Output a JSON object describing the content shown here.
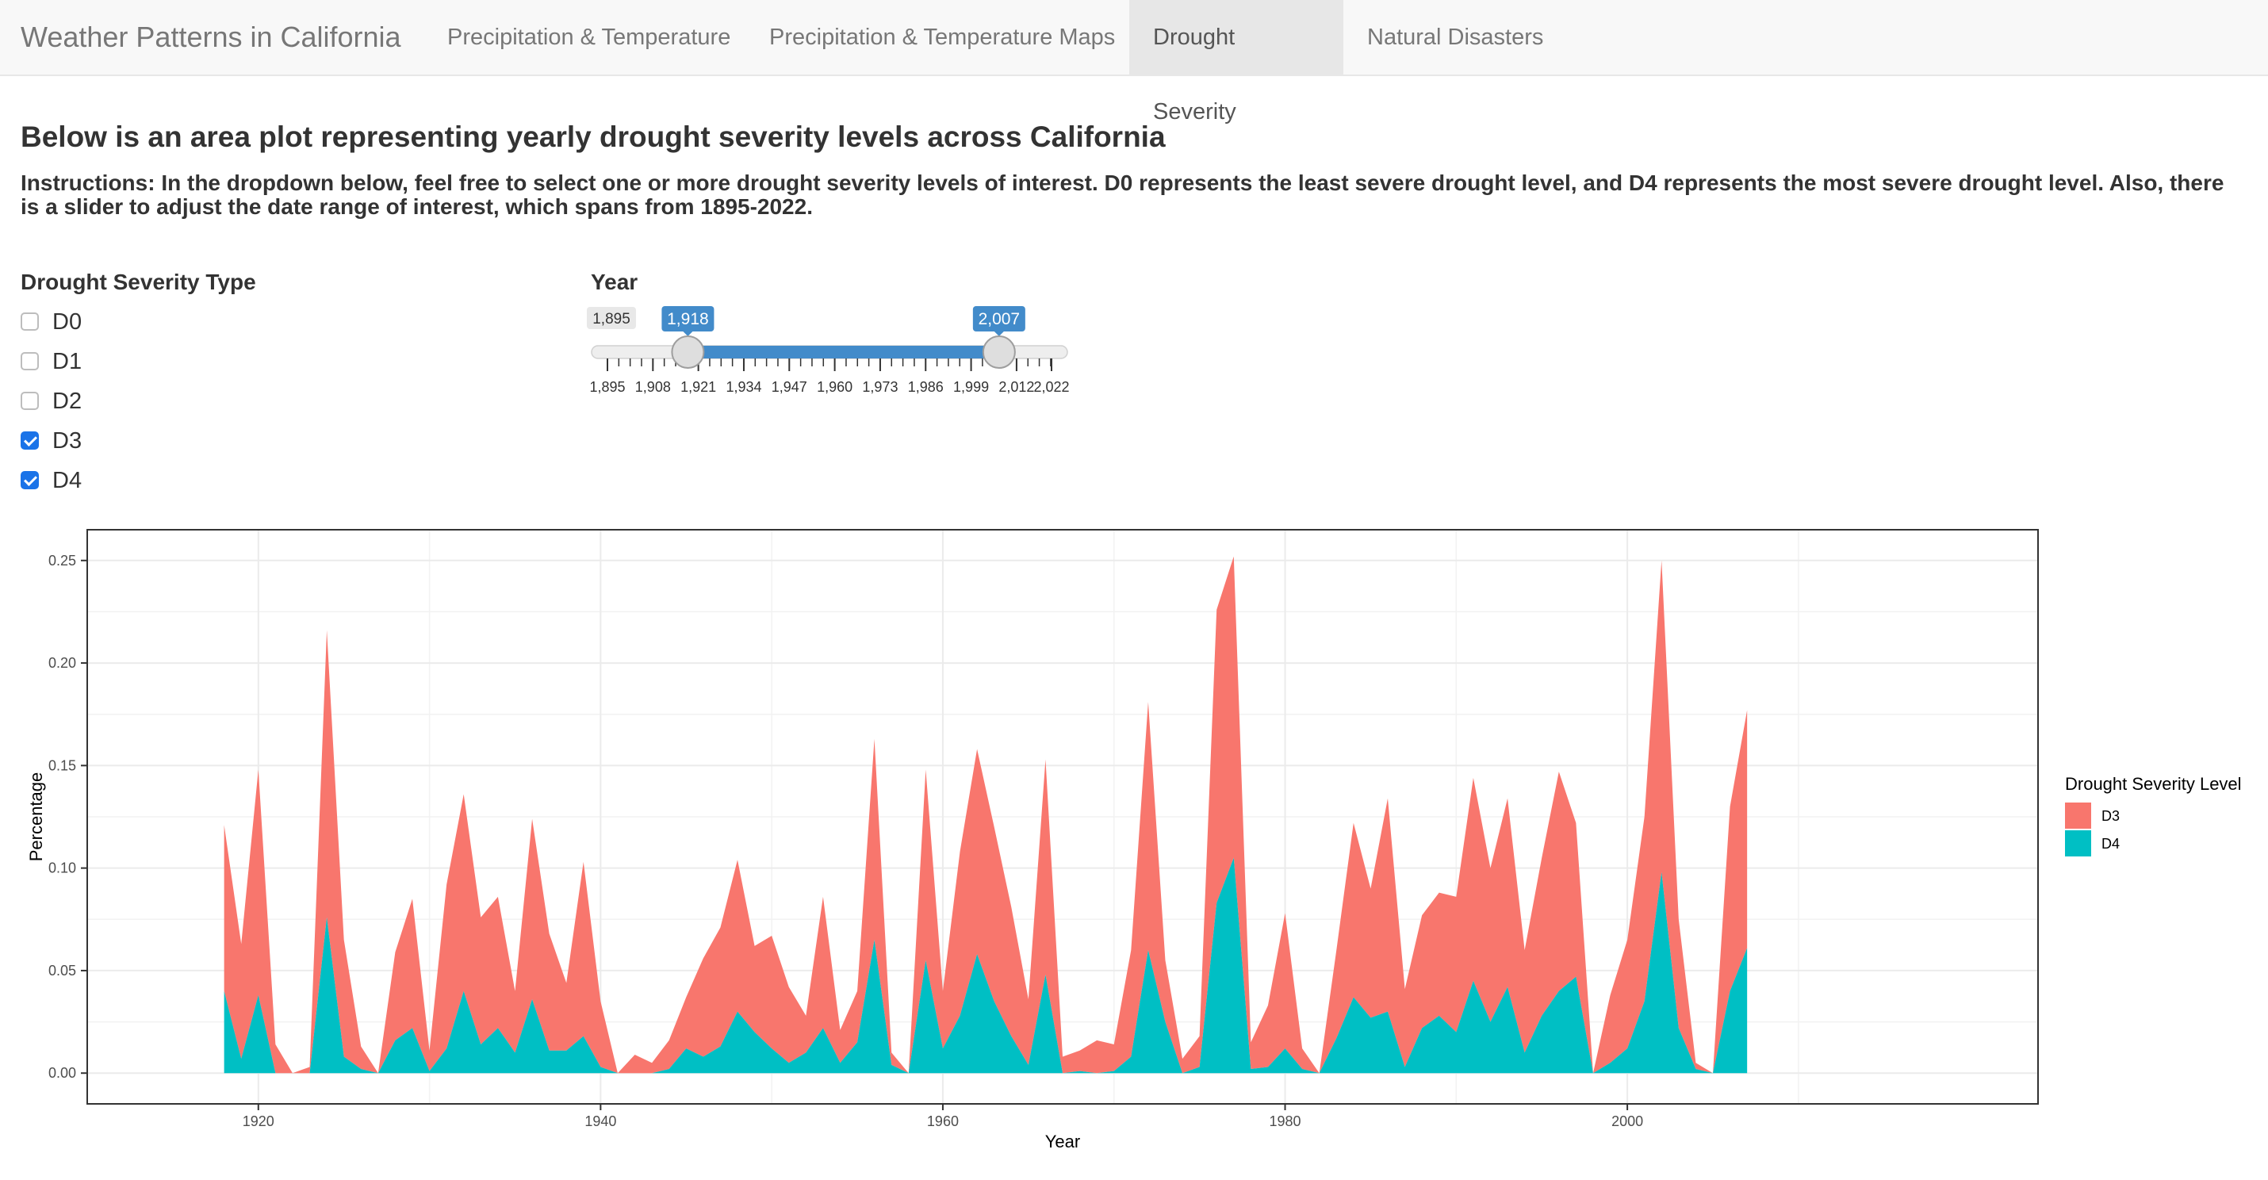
{
  "navbar": {
    "brand": "Weather Patterns in California",
    "tabs": [
      {
        "label": "Precipitation & Temperature",
        "active": false
      },
      {
        "label": "Precipitation & Temperature Maps",
        "active": false
      },
      {
        "label": "Drought Severity",
        "active": true
      },
      {
        "label": "Natural Disasters",
        "active": false
      }
    ]
  },
  "page": {
    "title": "Below is an area plot representing yearly drought severity levels across California",
    "instructions": "Instructions: In the dropdown below, feel free to select one or more drought severity levels of interest. D0 represents the least severe drought level, and D4 represents the most severe drought level. Also, there is a slider to adjust the date range of interest, which spans from 1895-2022."
  },
  "severity_filter": {
    "label": "Drought Severity Type",
    "options": [
      {
        "label": "D0",
        "checked": false
      },
      {
        "label": "D1",
        "checked": false
      },
      {
        "label": "D2",
        "checked": false
      },
      {
        "label": "D3",
        "checked": true
      },
      {
        "label": "D4",
        "checked": true
      }
    ]
  },
  "year_slider": {
    "label": "Year",
    "min": 1895,
    "max": 2022,
    "from": 1918,
    "to": 2007,
    "min_label": "1,895",
    "from_label": "1,918",
    "to_label": "2,007",
    "tick_labels": [
      {
        "value": 1895,
        "text": "1,895"
      },
      {
        "value": 1908,
        "text": "1,908"
      },
      {
        "value": 1921,
        "text": "1,921"
      },
      {
        "value": 1934,
        "text": "1,934"
      },
      {
        "value": 1947,
        "text": "1,947"
      },
      {
        "value": 1960,
        "text": "1,960"
      },
      {
        "value": 1973,
        "text": "1,973"
      },
      {
        "value": 1986,
        "text": "1,986"
      },
      {
        "value": 1999,
        "text": "1,999"
      },
      {
        "value": 2012,
        "text": "2,012"
      },
      {
        "value": 2022,
        "text": "2,022"
      }
    ],
    "accent_color": "#428bca"
  },
  "chart_data": {
    "type": "area",
    "stacked": true,
    "xlabel": "Year",
    "ylabel": "Percentage",
    "xlim": [
      1910,
      2024
    ],
    "ylim": [
      -0.015,
      0.265
    ],
    "x_ticks": [
      1920,
      1940,
      1960,
      1980,
      2000
    ],
    "y_ticks": [
      0,
      0.05,
      0.1,
      0.15,
      0.2,
      0.25
    ],
    "y_tick_labels": [
      "0.00",
      "0.05",
      "0.10",
      "0.15",
      "0.20",
      "0.25"
    ],
    "grid": true,
    "legend": {
      "title": "Drought Severity Level",
      "position": "right"
    },
    "x": [
      1918,
      1919,
      1920,
      1921,
      1922,
      1923,
      1924,
      1925,
      1926,
      1927,
      1928,
      1929,
      1930,
      1931,
      1932,
      1933,
      1934,
      1935,
      1936,
      1937,
      1938,
      1939,
      1940,
      1941,
      1942,
      1943,
      1944,
      1945,
      1946,
      1947,
      1948,
      1949,
      1950,
      1951,
      1952,
      1953,
      1954,
      1955,
      1956,
      1957,
      1958,
      1959,
      1960,
      1961,
      1962,
      1963,
      1964,
      1965,
      1966,
      1967,
      1968,
      1969,
      1970,
      1971,
      1972,
      1973,
      1974,
      1975,
      1976,
      1977,
      1978,
      1979,
      1980,
      1981,
      1982,
      1983,
      1984,
      1985,
      1986,
      1987,
      1988,
      1989,
      1990,
      1991,
      1992,
      1993,
      1994,
      1995,
      1996,
      1997,
      1998,
      1999,
      2000,
      2001,
      2002,
      2003,
      2004,
      2005,
      2006,
      2007
    ],
    "series": [
      {
        "name": "D4",
        "color": "#00bfc4",
        "values": [
          0.04,
          0.007,
          0.038,
          0.0,
          0.0,
          0.0,
          0.076,
          0.008,
          0.002,
          0.0,
          0.016,
          0.022,
          0.001,
          0.012,
          0.04,
          0.014,
          0.022,
          0.01,
          0.036,
          0.011,
          0.011,
          0.018,
          0.003,
          0.0,
          0.0,
          0.0,
          0.002,
          0.012,
          0.008,
          0.013,
          0.03,
          0.02,
          0.012,
          0.005,
          0.01,
          0.022,
          0.005,
          0.015,
          0.065,
          0.004,
          0.0,
          0.055,
          0.012,
          0.028,
          0.058,
          0.035,
          0.018,
          0.004,
          0.048,
          0.0,
          0.001,
          0.0,
          0.001,
          0.008,
          0.06,
          0.025,
          0.0,
          0.003,
          0.083,
          0.105,
          0.002,
          0.003,
          0.012,
          0.002,
          0.0,
          0.017,
          0.037,
          0.027,
          0.03,
          0.003,
          0.022,
          0.028,
          0.02,
          0.045,
          0.025,
          0.042,
          0.01,
          0.028,
          0.04,
          0.047,
          0.0,
          0.005,
          0.012,
          0.035,
          0.098,
          0.022,
          0.002,
          0.0,
          0.04,
          0.061
        ]
      },
      {
        "name": "D3",
        "color": "#f8766d",
        "values": [
          0.081,
          0.056,
          0.11,
          0.014,
          0.0,
          0.003,
          0.14,
          0.057,
          0.011,
          0.0,
          0.043,
          0.063,
          0.01,
          0.08,
          0.096,
          0.062,
          0.064,
          0.03,
          0.088,
          0.057,
          0.033,
          0.085,
          0.032,
          0.0,
          0.009,
          0.005,
          0.014,
          0.025,
          0.048,
          0.058,
          0.074,
          0.042,
          0.055,
          0.037,
          0.018,
          0.064,
          0.016,
          0.025,
          0.098,
          0.006,
          0.0,
          0.093,
          0.028,
          0.08,
          0.1,
          0.085,
          0.063,
          0.032,
          0.105,
          0.008,
          0.01,
          0.016,
          0.013,
          0.052,
          0.121,
          0.03,
          0.007,
          0.015,
          0.143,
          0.147,
          0.013,
          0.03,
          0.066,
          0.01,
          0.0,
          0.043,
          0.085,
          0.063,
          0.104,
          0.038,
          0.055,
          0.06,
          0.066,
          0.099,
          0.075,
          0.092,
          0.05,
          0.077,
          0.107,
          0.075,
          0.0,
          0.033,
          0.053,
          0.09,
          0.152,
          0.053,
          0.003,
          0.0,
          0.09,
          0.116
        ]
      }
    ]
  }
}
